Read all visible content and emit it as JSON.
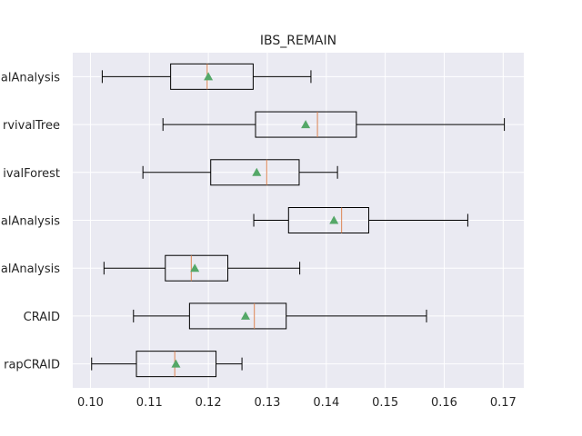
{
  "chart_data": {
    "type": "boxplot",
    "orientation": "horizontal",
    "title": "IBS_REMAIN",
    "xlabel": "",
    "ylabel": "",
    "xlim": [
      0.097,
      0.1735
    ],
    "xticks": [
      0.1,
      0.11,
      0.12,
      0.13,
      0.14,
      0.15,
      0.16,
      0.17
    ],
    "xtick_labels": [
      "0.10",
      "0.11",
      "0.12",
      "0.13",
      "0.14",
      "0.15",
      "0.16",
      "0.17"
    ],
    "grid": true,
    "background": "#eaeaf2",
    "colors": {
      "box": "#000000",
      "median": "#dd8452",
      "mean": "#55a868",
      "grid": "#ffffff"
    },
    "categories": [
      "rapCRAID",
      "CRAID",
      "alAnalysis",
      "alAnalysis",
      "ivalForest",
      "rvivalTree",
      "alAnalysis"
    ],
    "boxes": [
      {
        "label": "rapCRAID",
        "whislo": 0.1002,
        "q1": 0.1078,
        "med": 0.1143,
        "q3": 0.1213,
        "whishi": 0.1257,
        "mean": 0.1145
      },
      {
        "label": "CRAID",
        "whislo": 0.1073,
        "q1": 0.1168,
        "med": 0.1278,
        "q3": 0.1332,
        "whishi": 0.157,
        "mean": 0.1263
      },
      {
        "label": "alAnalysis",
        "whislo": 0.1023,
        "q1": 0.1127,
        "med": 0.1171,
        "q3": 0.1233,
        "whishi": 0.1355,
        "mean": 0.1177
      },
      {
        "label": "alAnalysis",
        "whislo": 0.1277,
        "q1": 0.1336,
        "med": 0.1426,
        "q3": 0.1472,
        "whishi": 0.164,
        "mean": 0.1413
      },
      {
        "label": "ivalForest",
        "whislo": 0.1089,
        "q1": 0.1204,
        "med": 0.1299,
        "q3": 0.1354,
        "whishi": 0.1419,
        "mean": 0.1282
      },
      {
        "label": "rvivalTree",
        "whislo": 0.1123,
        "q1": 0.128,
        "med": 0.1385,
        "q3": 0.1451,
        "whishi": 0.1702,
        "mean": 0.1365
      },
      {
        "label": "alAnalysis",
        "whislo": 0.102,
        "q1": 0.1136,
        "med": 0.1198,
        "q3": 0.1276,
        "whishi": 0.1374,
        "mean": 0.12
      }
    ]
  }
}
